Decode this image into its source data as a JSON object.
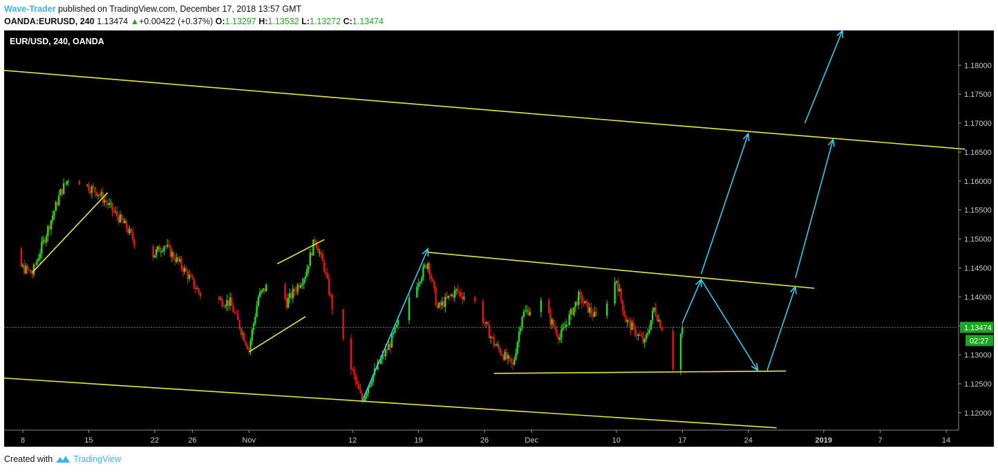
{
  "header": {
    "author": "Wave-Trader",
    "published_text": "published on TradingView.com, December 17, 2018 13:57 GMT",
    "symbol": "OANDA:EURUSD, 240",
    "last": "1.13474",
    "change_arrow": "▲",
    "change": "+0.00422 (+0.37%)",
    "o_label": "O:",
    "o_value": "1.13297",
    "h_label": "H:",
    "h_value": "1.13532",
    "l_label": "L:",
    "l_value": "1.13272",
    "c_label": "C:",
    "c_value": "1.13474"
  },
  "footer": {
    "created_with": "Created with",
    "brand": "TradingView",
    "logo_icon": "tradingview-logo-icon"
  },
  "colors": {
    "background": "#000000",
    "bull": "#22dd22",
    "bear": "#ee1111",
    "trendline": "#e8e83a",
    "arrow": "#33ccee",
    "price_tag": "#1ea61e",
    "brand": "#3bb3e4"
  },
  "chart_data": {
    "type": "candlestick",
    "title": "EUR/USD, 240, OANDA",
    "timeframe": "4h",
    "ylim": [
      1.117,
      1.186
    ],
    "yticks": [
      "1.18000",
      "1.17500",
      "1.17000",
      "1.16500",
      "1.16000",
      "1.15500",
      "1.15000",
      "1.14500",
      "1.14000",
      "1.13500",
      "1.13000",
      "1.12500",
      "1.12000"
    ],
    "xticks": [
      "8",
      "15",
      "22",
      "26",
      "Nov",
      "12",
      "19",
      "26",
      "Dec",
      "10",
      "17",
      "24",
      "2019",
      "7",
      "14"
    ],
    "current_price": "1.13474",
    "countdown": "02:27",
    "price_path": [
      {
        "t": "Oct 4",
        "p": 1.152
      },
      {
        "t": "Oct 6",
        "p": 1.147
      },
      {
        "t": "Oct 9",
        "p": 1.144
      },
      {
        "t": "Oct 12",
        "p": 1.158
      },
      {
        "t": "Oct 13",
        "p": 1.161
      },
      {
        "t": "Oct 16",
        "p": 1.158
      },
      {
        "t": "Oct 19",
        "p": 1.152
      },
      {
        "t": "Oct 21",
        "p": 1.146
      },
      {
        "t": "Oct 23",
        "p": 1.149
      },
      {
        "t": "Oct 25",
        "p": 1.145
      },
      {
        "t": "Oct 27",
        "p": 1.14
      },
      {
        "t": "Oct 30",
        "p": 1.139
      },
      {
        "t": "Nov 1",
        "p": 1.131
      },
      {
        "t": "Nov 2",
        "p": 1.14
      },
      {
        "t": "Nov 4",
        "p": 1.144
      },
      {
        "t": "Nov 5",
        "p": 1.139
      },
      {
        "t": "Nov 7",
        "p": 1.144
      },
      {
        "t": "Nov 8",
        "p": 1.15
      },
      {
        "t": "Nov 9",
        "p": 1.145
      },
      {
        "t": "Nov 10",
        "p": 1.137
      },
      {
        "t": "Nov 12",
        "p": 1.127
      },
      {
        "t": "Nov 13",
        "p": 1.122
      },
      {
        "t": "Nov 14",
        "p": 1.126
      },
      {
        "t": "Nov 16",
        "p": 1.132
      },
      {
        "t": "Nov 18",
        "p": 1.14
      },
      {
        "t": "Nov 20",
        "p": 1.146
      },
      {
        "t": "Nov 21",
        "p": 1.138
      },
      {
        "t": "Nov 23",
        "p": 1.141
      },
      {
        "t": "Nov 25",
        "p": 1.139
      },
      {
        "t": "Nov 27",
        "p": 1.132
      },
      {
        "t": "Nov 29",
        "p": 1.128
      },
      {
        "t": "Nov 30",
        "p": 1.137
      },
      {
        "t": "Dec 2",
        "p": 1.139
      },
      {
        "t": "Dec 4",
        "p": 1.133
      },
      {
        "t": "Dec 6",
        "p": 1.14
      },
      {
        "t": "Dec 8",
        "p": 1.136
      },
      {
        "t": "Dec 10",
        "p": 1.143
      },
      {
        "t": "Dec 11",
        "p": 1.136
      },
      {
        "t": "Dec 13",
        "p": 1.132
      },
      {
        "t": "Dec 14",
        "p": 1.138
      },
      {
        "t": "Dec 15",
        "p": 1.134
      },
      {
        "t": "Dec 16",
        "p": 1.128
      },
      {
        "t": "Dec 17",
        "p": 1.1347
      }
    ],
    "trendlines": [
      {
        "name": "upper-channel",
        "from": {
          "t": "Oct 3",
          "p": 1.1795
        },
        "to": {
          "t": "Jan 16",
          "p": 1.1655
        }
      },
      {
        "name": "lower-channel",
        "from": {
          "t": "Oct 3",
          "p": 1.1263
        },
        "to": {
          "t": "Dec 27",
          "p": 1.1174
        }
      },
      {
        "name": "triangle-top",
        "from": {
          "t": "Nov 20",
          "p": 1.1477
        },
        "to": {
          "t": "Dec 31",
          "p": 1.1415
        }
      },
      {
        "name": "triangle-base",
        "from": {
          "t": "Nov 27",
          "p": 1.1268
        },
        "to": {
          "t": "Dec 28",
          "p": 1.1272
        }
      },
      {
        "name": "wave-a",
        "from": {
          "t": "Oct 9",
          "p": 1.1442
        },
        "to": {
          "t": "Oct 17",
          "p": 1.158
        }
      },
      {
        "name": "wave-b-top",
        "from": {
          "t": "Nov 4",
          "p": 1.1457
        },
        "to": {
          "t": "Nov 9",
          "p": 1.1499
        }
      },
      {
        "name": "wave-b-bottom",
        "from": {
          "t": "Nov 1",
          "p": 1.1305
        },
        "to": {
          "t": "Nov 7",
          "p": 1.1366
        }
      }
    ],
    "projection_arrows": [
      {
        "from": {
          "t": "Nov 13",
          "p": 1.122
        },
        "to": {
          "t": "Nov 20",
          "p": 1.1483
        }
      },
      {
        "from": {
          "t": "Dec 17",
          "p": 1.1355
        },
        "to": {
          "t": "Dec 19",
          "p": 1.143
        }
      },
      {
        "from": {
          "t": "Dec 19",
          "p": 1.143
        },
        "to": {
          "t": "Dec 25",
          "p": 1.1273
        }
      },
      {
        "from": {
          "t": "Dec 26",
          "p": 1.1273
        },
        "to": {
          "t": "Dec 29",
          "p": 1.1418
        }
      },
      {
        "from": {
          "t": "Dec 19",
          "p": 1.144
        },
        "to": {
          "t": "Dec 24",
          "p": 1.1682
        }
      },
      {
        "from": {
          "t": "Dec 29",
          "p": 1.1433
        },
        "to": {
          "t": "Jan 2",
          "p": 1.1672
        }
      },
      {
        "from": {
          "t": "Dec 30",
          "p": 1.17
        },
        "to": {
          "t": "Jan 3",
          "p": 1.186
        }
      }
    ]
  }
}
